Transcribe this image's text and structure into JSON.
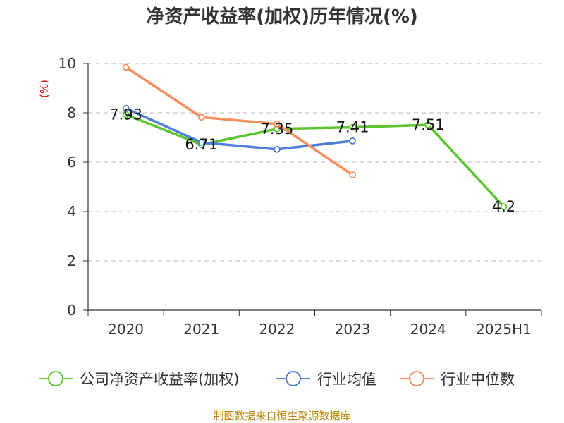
{
  "chart_data": {
    "type": "line",
    "title": "净资产收益率(加权)历年情况(%)",
    "ylabel": "(%)",
    "ylim": [
      0,
      10
    ],
    "yticks": [
      0,
      2,
      4,
      6,
      8,
      10
    ],
    "grid": true,
    "legend_position": "bottom",
    "categories": [
      "2020",
      "2021",
      "2022",
      "2023",
      "2024",
      "2025H1"
    ],
    "series": [
      {
        "name": "公司净资产收益率(加权)",
        "color": "#5dc42b",
        "values": [
          7.93,
          6.71,
          7.35,
          7.41,
          7.51,
          4.2
        ],
        "show_labels": true
      },
      {
        "name": "行业均值",
        "color": "#4f7fd9",
        "values": [
          8.18,
          6.8,
          6.52,
          6.86,
          null,
          null
        ],
        "show_labels": false
      },
      {
        "name": "行业中位数",
        "color": "#f58e5c",
        "values": [
          9.85,
          7.82,
          7.55,
          5.48,
          null,
          null
        ],
        "show_labels": false
      }
    ]
  },
  "source": "制图数据来自恒生聚源数据库"
}
